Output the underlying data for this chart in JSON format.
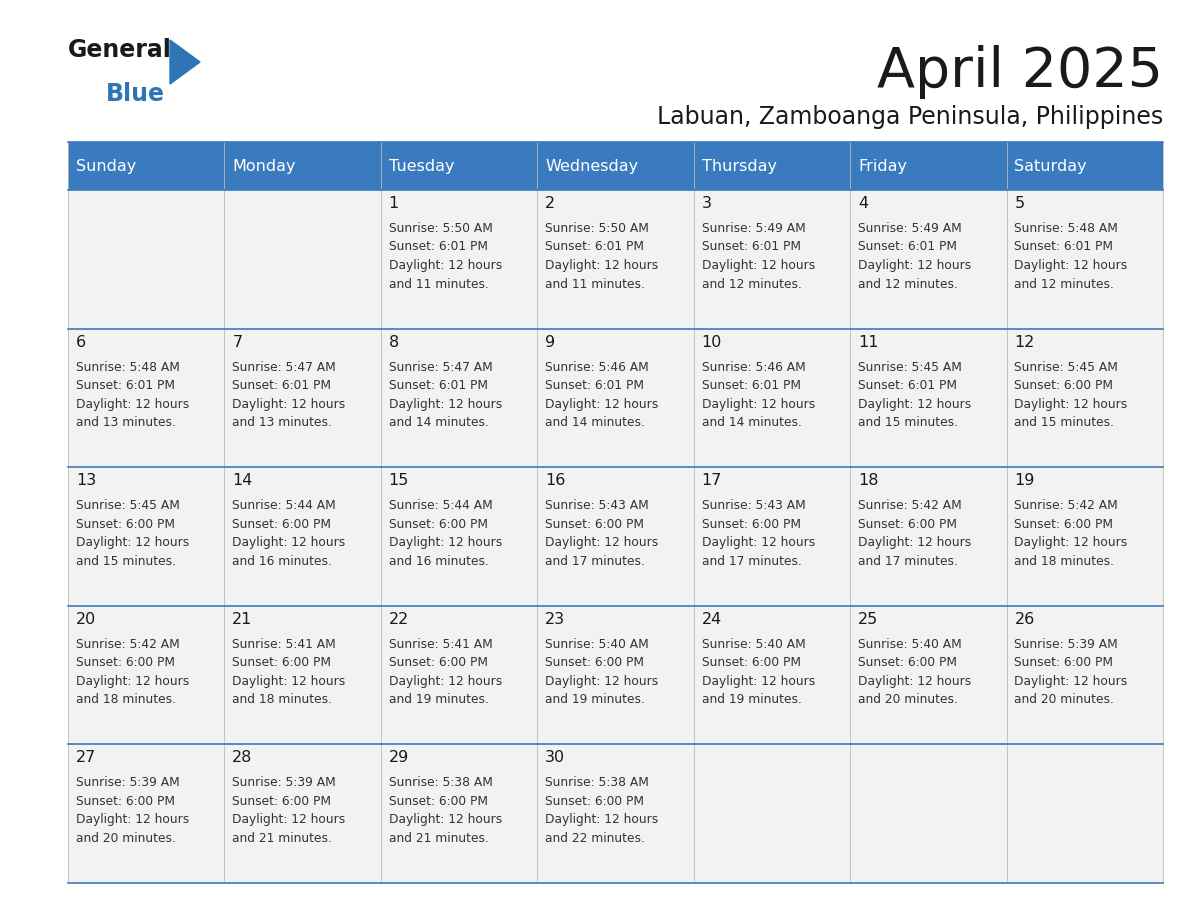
{
  "title": "April 2025",
  "subtitle": "Labuan, Zamboanga Peninsula, Philippines",
  "header_bg_color": "#3a7bbf",
  "header_text_color": "#ffffff",
  "cell_bg_color": "#f2f2f2",
  "cell_text_color": "#222222",
  "border_color": "#3a7bbf",
  "days_of_week": [
    "Sunday",
    "Monday",
    "Tuesday",
    "Wednesday",
    "Thursday",
    "Friday",
    "Saturday"
  ],
  "calendar": [
    [
      {
        "day": null,
        "sunrise": null,
        "sunset": null,
        "daylight": null
      },
      {
        "day": null,
        "sunrise": null,
        "sunset": null,
        "daylight": null
      },
      {
        "day": 1,
        "sunrise": "5:50 AM",
        "sunset": "6:01 PM",
        "daylight": "12 hours\nand 11 minutes."
      },
      {
        "day": 2,
        "sunrise": "5:50 AM",
        "sunset": "6:01 PM",
        "daylight": "12 hours\nand 11 minutes."
      },
      {
        "day": 3,
        "sunrise": "5:49 AM",
        "sunset": "6:01 PM",
        "daylight": "12 hours\nand 12 minutes."
      },
      {
        "day": 4,
        "sunrise": "5:49 AM",
        "sunset": "6:01 PM",
        "daylight": "12 hours\nand 12 minutes."
      },
      {
        "day": 5,
        "sunrise": "5:48 AM",
        "sunset": "6:01 PM",
        "daylight": "12 hours\nand 12 minutes."
      }
    ],
    [
      {
        "day": 6,
        "sunrise": "5:48 AM",
        "sunset": "6:01 PM",
        "daylight": "12 hours\nand 13 minutes."
      },
      {
        "day": 7,
        "sunrise": "5:47 AM",
        "sunset": "6:01 PM",
        "daylight": "12 hours\nand 13 minutes."
      },
      {
        "day": 8,
        "sunrise": "5:47 AM",
        "sunset": "6:01 PM",
        "daylight": "12 hours\nand 14 minutes."
      },
      {
        "day": 9,
        "sunrise": "5:46 AM",
        "sunset": "6:01 PM",
        "daylight": "12 hours\nand 14 minutes."
      },
      {
        "day": 10,
        "sunrise": "5:46 AM",
        "sunset": "6:01 PM",
        "daylight": "12 hours\nand 14 minutes."
      },
      {
        "day": 11,
        "sunrise": "5:45 AM",
        "sunset": "6:01 PM",
        "daylight": "12 hours\nand 15 minutes."
      },
      {
        "day": 12,
        "sunrise": "5:45 AM",
        "sunset": "6:00 PM",
        "daylight": "12 hours\nand 15 minutes."
      }
    ],
    [
      {
        "day": 13,
        "sunrise": "5:45 AM",
        "sunset": "6:00 PM",
        "daylight": "12 hours\nand 15 minutes."
      },
      {
        "day": 14,
        "sunrise": "5:44 AM",
        "sunset": "6:00 PM",
        "daylight": "12 hours\nand 16 minutes."
      },
      {
        "day": 15,
        "sunrise": "5:44 AM",
        "sunset": "6:00 PM",
        "daylight": "12 hours\nand 16 minutes."
      },
      {
        "day": 16,
        "sunrise": "5:43 AM",
        "sunset": "6:00 PM",
        "daylight": "12 hours\nand 17 minutes."
      },
      {
        "day": 17,
        "sunrise": "5:43 AM",
        "sunset": "6:00 PM",
        "daylight": "12 hours\nand 17 minutes."
      },
      {
        "day": 18,
        "sunrise": "5:42 AM",
        "sunset": "6:00 PM",
        "daylight": "12 hours\nand 17 minutes."
      },
      {
        "day": 19,
        "sunrise": "5:42 AM",
        "sunset": "6:00 PM",
        "daylight": "12 hours\nand 18 minutes."
      }
    ],
    [
      {
        "day": 20,
        "sunrise": "5:42 AM",
        "sunset": "6:00 PM",
        "daylight": "12 hours\nand 18 minutes."
      },
      {
        "day": 21,
        "sunrise": "5:41 AM",
        "sunset": "6:00 PM",
        "daylight": "12 hours\nand 18 minutes."
      },
      {
        "day": 22,
        "sunrise": "5:41 AM",
        "sunset": "6:00 PM",
        "daylight": "12 hours\nand 19 minutes."
      },
      {
        "day": 23,
        "sunrise": "5:40 AM",
        "sunset": "6:00 PM",
        "daylight": "12 hours\nand 19 minutes."
      },
      {
        "day": 24,
        "sunrise": "5:40 AM",
        "sunset": "6:00 PM",
        "daylight": "12 hours\nand 19 minutes."
      },
      {
        "day": 25,
        "sunrise": "5:40 AM",
        "sunset": "6:00 PM",
        "daylight": "12 hours\nand 20 minutes."
      },
      {
        "day": 26,
        "sunrise": "5:39 AM",
        "sunset": "6:00 PM",
        "daylight": "12 hours\nand 20 minutes."
      }
    ],
    [
      {
        "day": 27,
        "sunrise": "5:39 AM",
        "sunset": "6:00 PM",
        "daylight": "12 hours\nand 20 minutes."
      },
      {
        "day": 28,
        "sunrise": "5:39 AM",
        "sunset": "6:00 PM",
        "daylight": "12 hours\nand 21 minutes."
      },
      {
        "day": 29,
        "sunrise": "5:38 AM",
        "sunset": "6:00 PM",
        "daylight": "12 hours\nand 21 minutes."
      },
      {
        "day": 30,
        "sunrise": "5:38 AM",
        "sunset": "6:00 PM",
        "daylight": "12 hours\nand 22 minutes."
      },
      {
        "day": null,
        "sunrise": null,
        "sunset": null,
        "daylight": null
      },
      {
        "day": null,
        "sunrise": null,
        "sunset": null,
        "daylight": null
      },
      {
        "day": null,
        "sunrise": null,
        "sunset": null,
        "daylight": null
      }
    ]
  ],
  "logo_color_general": "#1a1a1a",
  "logo_color_blue": "#2e75b6",
  "logo_triangle_color": "#2e75b6",
  "fig_width": 11.88,
  "fig_height": 9.18,
  "dpi": 100
}
